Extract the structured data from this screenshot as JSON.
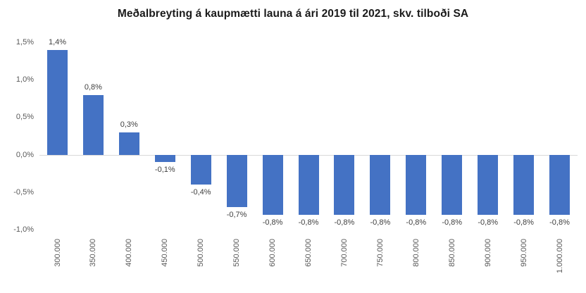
{
  "title": "Meðalbreyting á kaupmætti launa á ári 2019 til 2021, skv. tilboði SA",
  "colors": {
    "bar": "#4472C4",
    "axis_text": "#595959",
    "data_label_text": "#404040",
    "zero_line": "#D9D9D9",
    "title_text": "#1A1A1A",
    "background": "#FFFFFF"
  },
  "chart_data": {
    "type": "bar",
    "title": "Meðalbreyting á kaupmætti launa á ári 2019 til 2021, skv. tilboði SA",
    "categories": [
      "300.000",
      "350.000",
      "400.000",
      "450.000",
      "500.000",
      "550.000",
      "600.000",
      "650.000",
      "700.000",
      "750.000",
      "800.000",
      "850.000",
      "900.000",
      "950.000",
      "1.000.000"
    ],
    "values": [
      1.4,
      0.8,
      0.3,
      -0.1,
      -0.4,
      -0.7,
      -0.8,
      -0.8,
      -0.8,
      -0.8,
      -0.8,
      -0.8,
      -0.8,
      -0.8,
      -0.8
    ],
    "value_labels": [
      "1,4%",
      "0,8%",
      "0,3%",
      "-0,1%",
      "-0,4%",
      "-0,7%",
      "-0,8%",
      "-0,8%",
      "-0,8%",
      "-0,8%",
      "-0,8%",
      "-0,8%",
      "-0,8%",
      "-0,8%",
      "-0,8%"
    ],
    "xlabel": "",
    "ylabel": "",
    "ylim": [
      -1.0,
      1.5
    ],
    "yticks": [
      {
        "value": 1.5,
        "label": "1,5%"
      },
      {
        "value": 1.0,
        "label": "1,0%"
      },
      {
        "value": 0.5,
        "label": "0,5%"
      },
      {
        "value": 0.0,
        "label": "0,0%"
      },
      {
        "value": -0.5,
        "label": "-0,5%"
      },
      {
        "value": -1.0,
        "label": "-1,0%"
      }
    ],
    "grid": false,
    "legend": null
  }
}
